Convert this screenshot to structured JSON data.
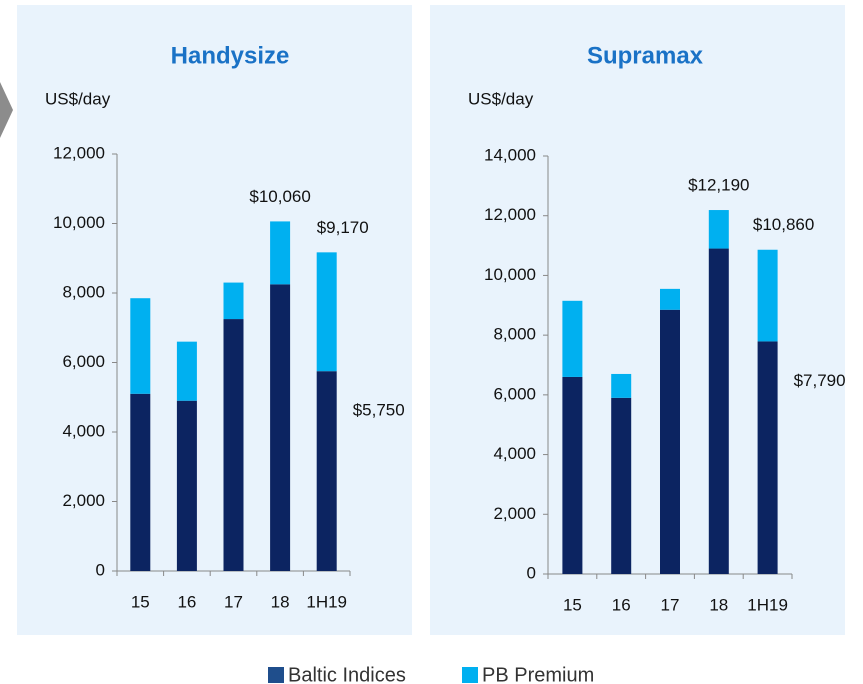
{
  "chart_data": [
    {
      "type": "bar",
      "stacked": true,
      "title": "Handysize",
      "y_label": "US$/day",
      "categories": [
        "15",
        "16",
        "17",
        "18",
        "1H19"
      ],
      "series": [
        {
          "name": "Baltic Indices",
          "color": "#0c2461",
          "values": [
            5100,
            4900,
            7250,
            8250,
            5750
          ]
        },
        {
          "name": "PB Premium",
          "color": "#00b0f0",
          "values": [
            2750,
            1700,
            1050,
            1810,
            3420
          ]
        }
      ],
      "annotations": [
        {
          "category": "18",
          "value": 10060,
          "label": "$10,060"
        },
        {
          "category": "1H19",
          "value": 9170,
          "label": "$9,170"
        },
        {
          "category": "1H19",
          "value": 5750,
          "label": "$5,750"
        }
      ],
      "ylim": [
        0,
        12000
      ],
      "yticks": [
        0,
        {
          "value": 2000,
          "label": "2,000"
        },
        {
          "value": 4000,
          "label": "4,000"
        },
        {
          "value": 6000,
          "label": "6,000"
        },
        {
          "value": 8000,
          "label": "8,000"
        },
        {
          "value": 10000,
          "label": "10,000"
        },
        {
          "value": 12000,
          "label": "12,000"
        }
      ]
    },
    {
      "type": "bar",
      "stacked": true,
      "title": "Supramax",
      "y_label": "US$/day",
      "categories": [
        "15",
        "16",
        "17",
        "18",
        "1H19"
      ],
      "series": [
        {
          "name": "Baltic Indices",
          "color": "#0c2461",
          "values": [
            6600,
            5900,
            8850,
            10900,
            7790
          ]
        },
        {
          "name": "PB Premium",
          "color": "#00b0f0",
          "values": [
            2550,
            800,
            700,
            1290,
            3070
          ]
        }
      ],
      "annotations": [
        {
          "category": "18",
          "value": 12190,
          "label": "$12,190"
        },
        {
          "category": "1H19",
          "value": 10860,
          "label": "$10,860"
        },
        {
          "category": "1H19",
          "value": 7790,
          "label": "$7,790"
        }
      ],
      "ylim": [
        0,
        14000
      ],
      "yticks": [
        0,
        {
          "value": 2000,
          "label": "2,000"
        },
        {
          "value": 4000,
          "label": "4,000"
        },
        {
          "value": 6000,
          "label": "6,000"
        },
        {
          "value": 8000,
          "label": "8,000"
        },
        {
          "value": 10000,
          "label": "10,000"
        },
        {
          "value": 12000,
          "label": "12,000"
        },
        {
          "value": 14000,
          "label": "14,000"
        }
      ]
    }
  ]
}
